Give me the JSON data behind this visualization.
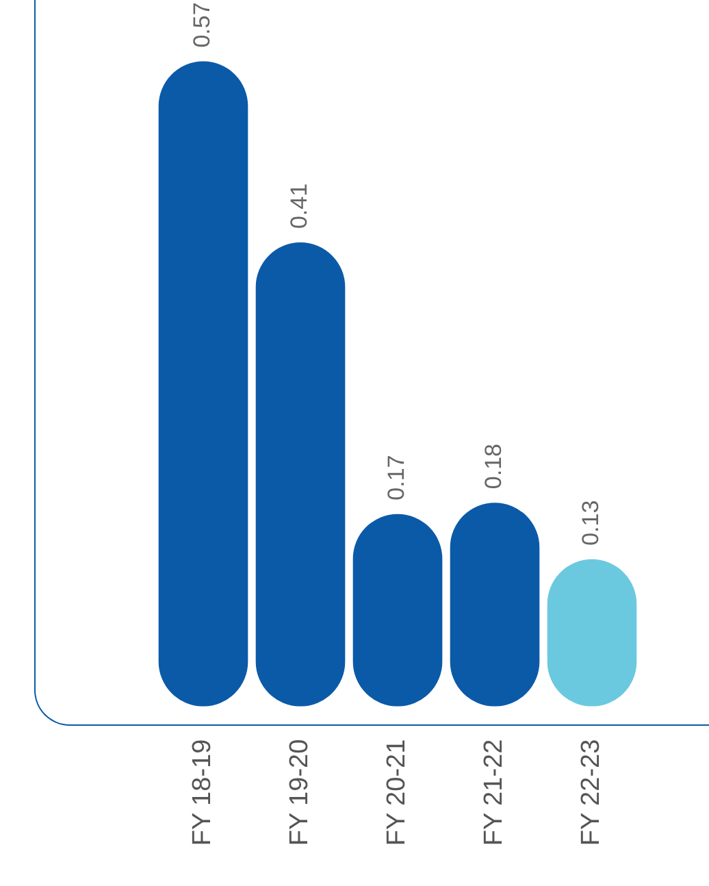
{
  "chart_data": {
    "type": "bar",
    "categories": [
      "FY 18-19",
      "FY 19-20",
      "FY 20-21",
      "FY 21-22",
      "FY 22-23"
    ],
    "values": [
      0.57,
      0.41,
      0.17,
      0.18,
      0.13
    ],
    "colors": [
      "#0b5aa8",
      "#0b5aa8",
      "#0b5aa8",
      "#0b5aa8",
      "#6bc9df"
    ],
    "data_labels": true,
    "relative": false,
    "grid": false,
    "legend": false
  }
}
